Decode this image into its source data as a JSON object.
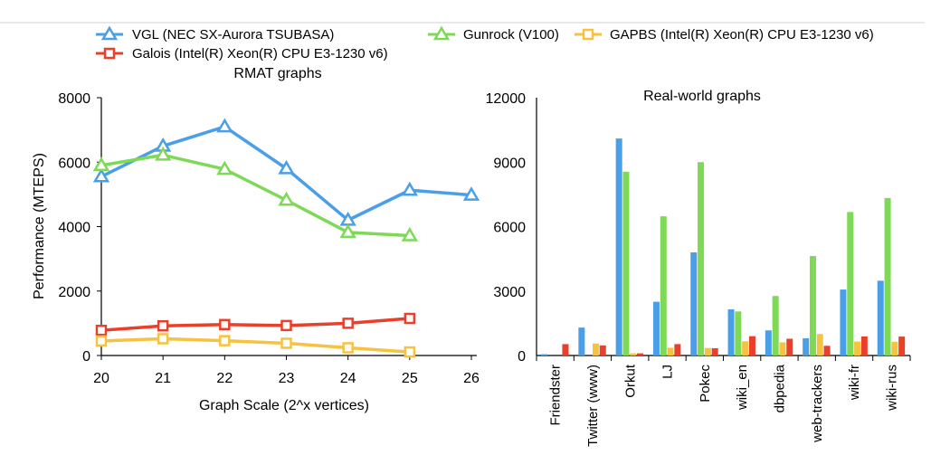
{
  "legend": {
    "entries": [
      {
        "name": "VGL (NEC SX-Aurora TSUBASA)",
        "color": "#4a9fe8",
        "marker": "triangle"
      },
      {
        "name": "Gunrock (V100)",
        "color": "#7ed957",
        "marker": "triangle"
      },
      {
        "name": "GAPBS (Intel(R) Xeon(R) CPU E3-1230 v6)",
        "color": "#f5c242",
        "marker": "square"
      },
      {
        "name": "Galois (Intel(R) Xeon(R) CPU E3-1230 v6)",
        "color": "#e8402a",
        "marker": "square"
      }
    ]
  },
  "chart_data": [
    {
      "type": "line",
      "title": "RMAT graphs",
      "xlabel": "Graph Scale (2^x vertices)",
      "ylabel": "Performance (MTEPS)",
      "x": [
        20,
        21,
        22,
        23,
        24,
        25,
        26
      ],
      "xlim": [
        20,
        26
      ],
      "ylim": [
        0,
        8000
      ],
      "yticks": [
        0,
        2000,
        4000,
        6000,
        8000
      ],
      "grid": false,
      "legend_position": "top",
      "series": [
        {
          "name": "VGL (NEC SX-Aurora TSUBASA)",
          "color": "#4a9fe8",
          "marker": "triangle",
          "values": [
            5550,
            6500,
            7100,
            5800,
            4200,
            5130,
            4980
          ]
        },
        {
          "name": "Gunrock (V100)",
          "color": "#7ed957",
          "marker": "triangle",
          "values": [
            5900,
            6220,
            5780,
            4820,
            3820,
            3720,
            null
          ]
        },
        {
          "name": "Galois (Intel(R) Xeon(R) CPU E3-1230 v6)",
          "color": "#e8402a",
          "marker": "square",
          "values": [
            780,
            920,
            960,
            930,
            1000,
            1150,
            null
          ]
        },
        {
          "name": "GAPBS (Intel(R) Xeon(R) CPU E3-1230 v6)",
          "color": "#f5c242",
          "marker": "square",
          "values": [
            450,
            520,
            460,
            380,
            240,
            110,
            null
          ]
        }
      ]
    },
    {
      "type": "bar",
      "title": "Real-world graphs",
      "xlabel": "",
      "ylabel": "",
      "categories": [
        "Friendster",
        "Twitter (www)",
        "Orkut",
        "LJ",
        "Pokec",
        "wiki_en",
        "dbpedia",
        "web-trackers",
        "wiki-fr",
        "wiki-rus"
      ],
      "ylim": [
        0,
        12000
      ],
      "yticks": [
        0,
        3000,
        6000,
        9000,
        12000
      ],
      "grid": false,
      "series": [
        {
          "name": "VGL (NEC SX-Aurora TSUBASA)",
          "color": "#4a9fe8",
          "values": [
            60,
            1300,
            10100,
            2500,
            4800,
            2150,
            1170,
            800,
            3070,
            3480
          ]
        },
        {
          "name": "Gunrock (V100)",
          "color": "#7ed957",
          "values": [
            0,
            0,
            8550,
            6480,
            9000,
            2050,
            2770,
            4630,
            6680,
            7330
          ]
        },
        {
          "name": "GAPBS (Intel(R) Xeon(R) CPU E3-1230 v6)",
          "color": "#f5c242",
          "values": [
            0,
            560,
            100,
            360,
            350,
            660,
            610,
            1000,
            650,
            640
          ]
        },
        {
          "name": "Galois (Intel(R) Xeon(R) CPU E3-1230 v6)",
          "color": "#e8402a",
          "values": [
            530,
            470,
            100,
            530,
            340,
            900,
            780,
            450,
            890,
            880
          ]
        }
      ]
    }
  ]
}
